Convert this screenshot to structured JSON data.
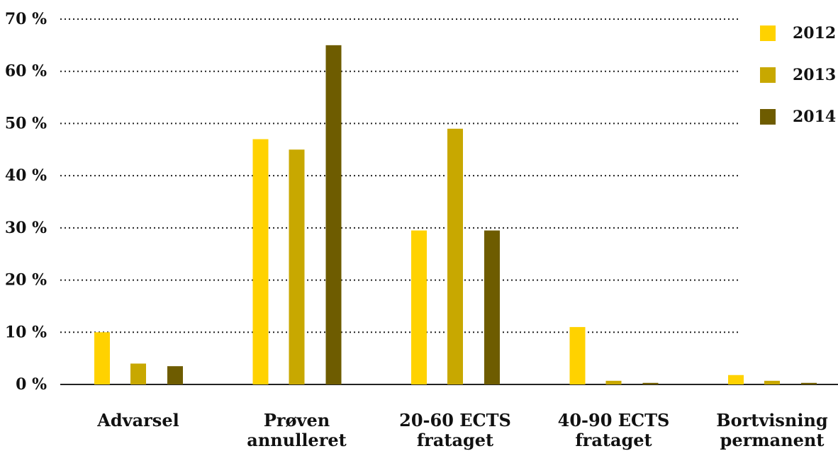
{
  "chart_data": {
    "type": "bar",
    "categories": [
      [
        "Advarsel"
      ],
      [
        "Prøven",
        "annulleret"
      ],
      [
        "20-60 ECTS",
        "frataget"
      ],
      [
        "40-90 ECTS",
        "frataget"
      ],
      [
        "Bortvisning",
        "permanent"
      ]
    ],
    "series": [
      {
        "name": "2012",
        "color": "#ffd200",
        "values": [
          10,
          47,
          29.5,
          11,
          1.8
        ]
      },
      {
        "name": "2013",
        "color": "#c8a800",
        "values": [
          4,
          45,
          49,
          0.7,
          0.7
        ]
      },
      {
        "name": "2014",
        "color": "#6e5c00",
        "values": [
          3.5,
          65,
          29.5,
          0.3,
          0.3
        ]
      }
    ],
    "yticks": [
      "0 %",
      "10 %",
      "20 %",
      "30 %",
      "40 %",
      "50 %",
      "60 %",
      "70 %"
    ],
    "ylim": [
      0,
      70
    ],
    "grid": true,
    "legend_position": "top-right"
  }
}
